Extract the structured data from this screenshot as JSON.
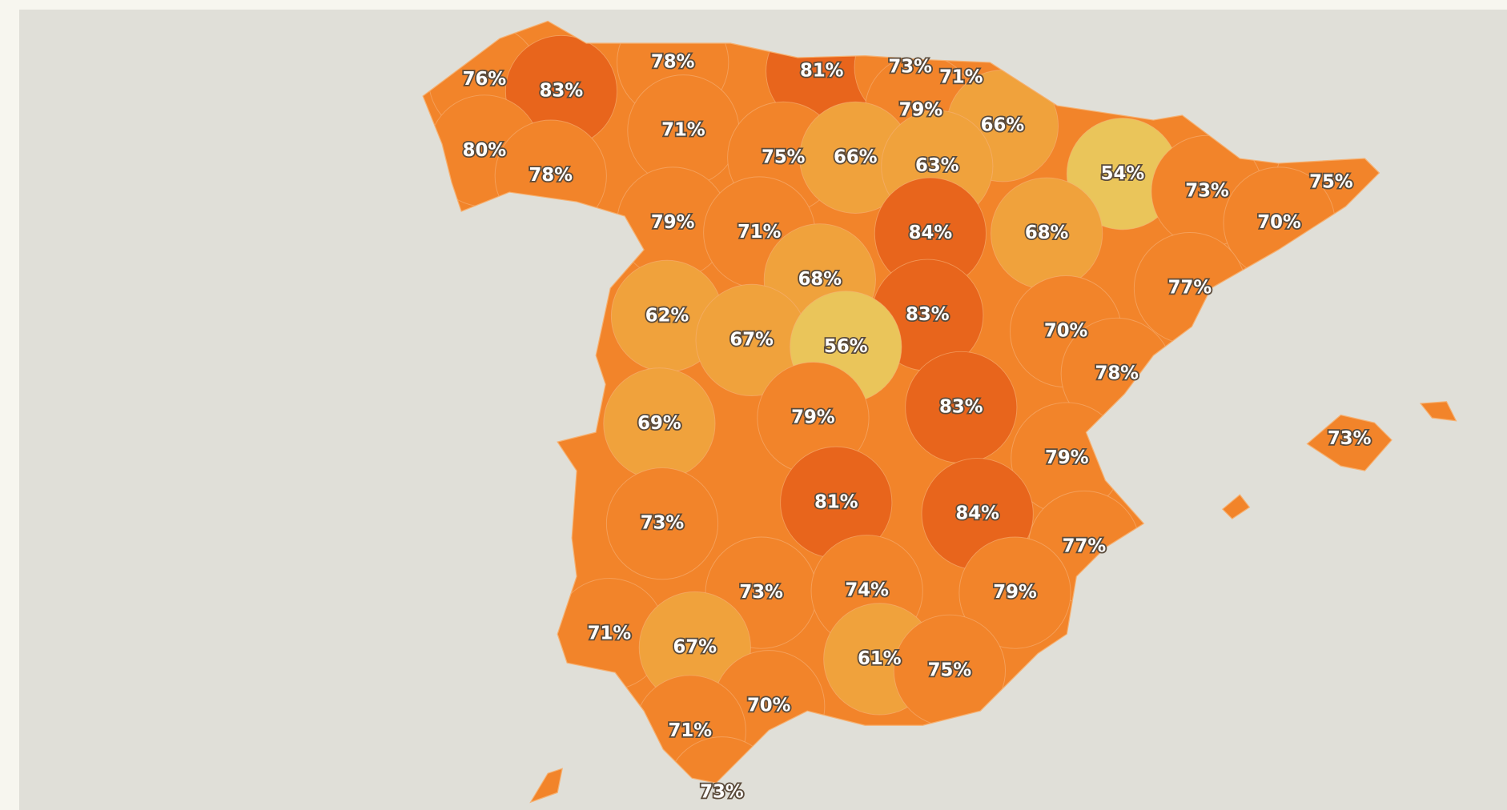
{
  "regions": [
    {
      "label": "76%",
      "color": "#f2842a"
    },
    {
      "label": "83%",
      "color": "#e8651c"
    },
    {
      "label": "78%",
      "color": "#f2842a"
    },
    {
      "label": "81%",
      "color": "#e8651c"
    },
    {
      "label": "73%",
      "color": "#f2842a"
    },
    {
      "label": "71%",
      "color": "#f2842a"
    },
    {
      "label": "79%",
      "color": "#f2842a"
    },
    {
      "label": "66%",
      "color": "#f0a23c"
    },
    {
      "label": "71%",
      "color": "#f2842a"
    },
    {
      "label": "80%",
      "color": "#f2842a"
    },
    {
      "label": "78%",
      "color": "#f2842a"
    },
    {
      "label": "75%",
      "color": "#f2842a"
    },
    {
      "label": "66%",
      "color": "#f0a23c"
    },
    {
      "label": "63%",
      "color": "#f0a23c"
    },
    {
      "label": "54%",
      "color": "#eac55a"
    },
    {
      "label": "73%",
      "color": "#f2842a"
    },
    {
      "label": "75%",
      "color": "#f2842a"
    },
    {
      "label": "70%",
      "color": "#f2842a"
    },
    {
      "label": "79%",
      "color": "#f2842a"
    },
    {
      "label": "71%",
      "color": "#f2842a"
    },
    {
      "label": "84%",
      "color": "#e8651c"
    },
    {
      "label": "68%",
      "color": "#f0a23c"
    },
    {
      "label": "68%",
      "color": "#f0a23c"
    },
    {
      "label": "77%",
      "color": "#f2842a"
    },
    {
      "label": "62%",
      "color": "#f0a23c"
    },
    {
      "label": "83%",
      "color": "#e8651c"
    },
    {
      "label": "67%",
      "color": "#f0a23c"
    },
    {
      "label": "56%",
      "color": "#eac55a"
    },
    {
      "label": "70%",
      "color": "#f2842a"
    },
    {
      "label": "78%",
      "color": "#f2842a"
    },
    {
      "label": "69%",
      "color": "#f0a23c"
    },
    {
      "label": "79%",
      "color": "#f2842a"
    },
    {
      "label": "83%",
      "color": "#e8651c"
    },
    {
      "label": "73%",
      "color": "#f2842a"
    },
    {
      "label": "79%",
      "color": "#f2842a"
    },
    {
      "label": "81%",
      "color": "#e8651c"
    },
    {
      "label": "84%",
      "color": "#e8651c"
    },
    {
      "label": "73%",
      "color": "#f2842a"
    },
    {
      "label": "77%",
      "color": "#f2842a"
    },
    {
      "label": "73%",
      "color": "#f2842a"
    },
    {
      "label": "74%",
      "color": "#f2842a"
    },
    {
      "label": "79%",
      "color": "#f2842a"
    },
    {
      "label": "71%",
      "color": "#f2842a"
    },
    {
      "label": "67%",
      "color": "#f0a23c"
    },
    {
      "label": "61%",
      "color": "#f0a23c"
    },
    {
      "label": "75%",
      "color": "#f2842a"
    },
    {
      "label": "70%",
      "color": "#f2842a"
    },
    {
      "label": "71%",
      "color": "#f2842a"
    },
    {
      "label": "73%",
      "color": "#f2842a"
    }
  ]
}
